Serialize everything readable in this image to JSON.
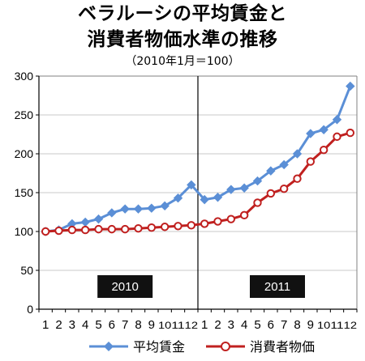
{
  "chart_data": {
    "type": "line",
    "title_line1": "ベラルーシの平均賃金と",
    "title_line2": "消費者物価水準の推移",
    "subtitle": "（2010年1月＝100）",
    "ylim": [
      0,
      300
    ],
    "y_ticks": [
      "0",
      "50",
      "100",
      "150",
      "200",
      "250",
      "300"
    ],
    "y_tick_values": [
      0,
      50,
      100,
      150,
      200,
      250,
      300
    ],
    "categories": [
      "1",
      "2",
      "3",
      "4",
      "5",
      "6",
      "7",
      "8",
      "9",
      "10",
      "11",
      "12",
      "1",
      "2",
      "3",
      "4",
      "5",
      "6",
      "7",
      "8",
      "9",
      "10",
      "11",
      "12"
    ],
    "year_labels": [
      "2010",
      "2011"
    ],
    "grid": true,
    "legend_position": "bottom",
    "series": [
      {
        "name": "平均賃金",
        "color": "#5B8FD6",
        "marker": "diamond",
        "values": [
          100,
          102,
          110,
          112,
          116,
          124,
          129,
          129,
          130,
          133,
          143,
          160,
          141,
          144,
          154,
          156,
          165,
          178,
          186,
          200,
          226,
          231,
          244,
          287
        ]
      },
      {
        "name": "消費者物価",
        "color": "#C0201F",
        "marker": "circle",
        "values": [
          100,
          101,
          102,
          102,
          103,
          103,
          103,
          104,
          105,
          106,
          107,
          108,
          110,
          113,
          116,
          121,
          137,
          149,
          155,
          168,
          190,
          205,
          222,
          227
        ]
      }
    ]
  }
}
